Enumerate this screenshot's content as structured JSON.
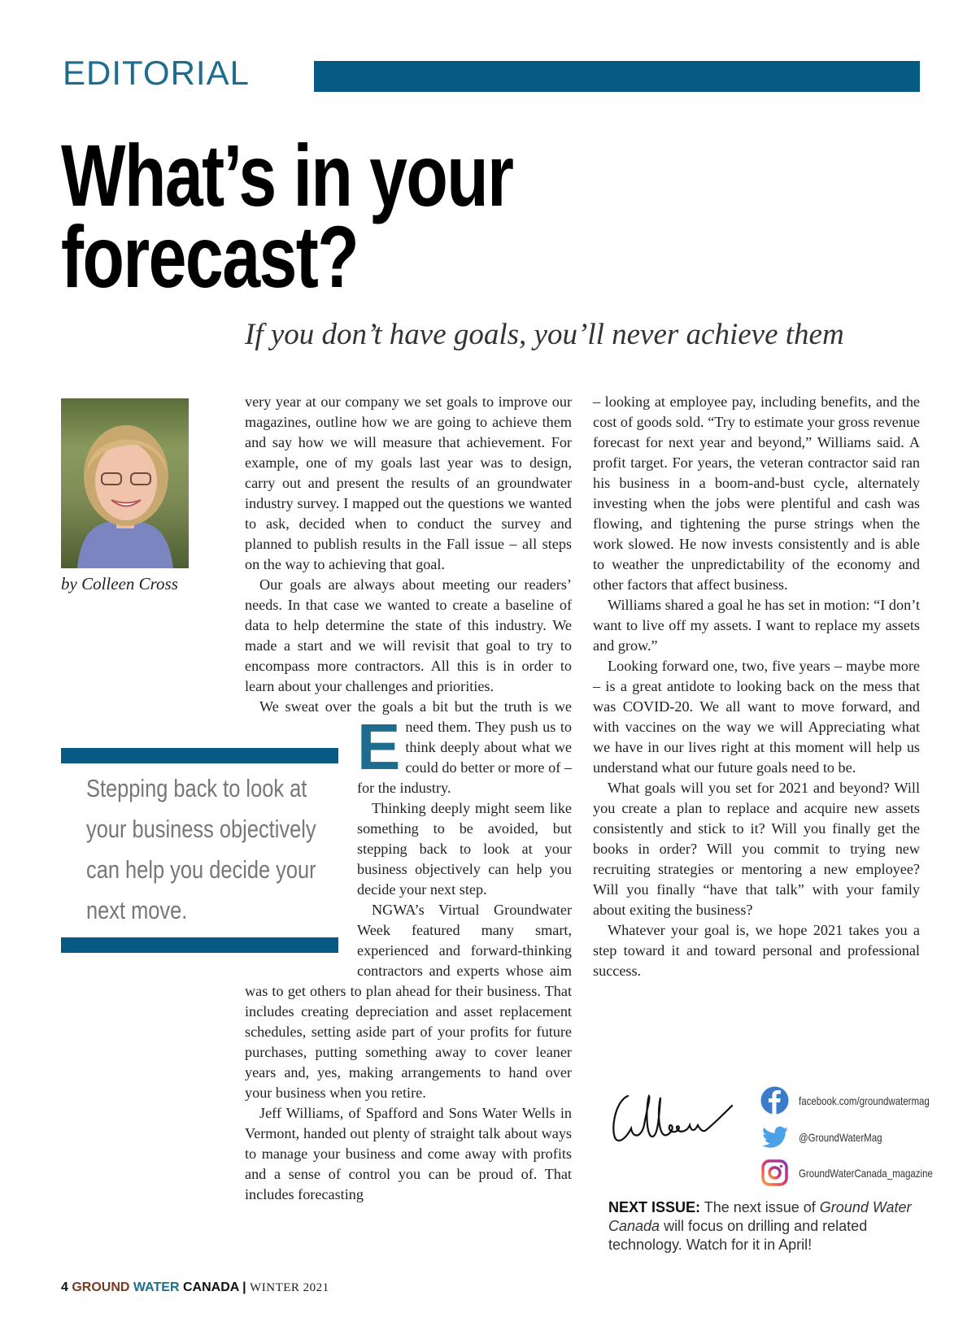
{
  "section": "EDITORIAL",
  "title_line1": "What’s in your",
  "title_line2": "forecast?",
  "subtitle": "If you don’t have goals, you’ll never achieve them",
  "byline": "by Colleen Cross",
  "drop_cap": "E",
  "col2": [
    "very year at our company we set goals to improve our magazines, outline how we are going to achieve them and say how we will measure that achievement. For example, one of my goals last year was to design, carry out and present the results of an groundwater industry survey. I mapped out the questions we wanted to ask, decided when to conduct the survey and planned to publish results in the Fall issue – all steps on the way to achieving that goal.",
    "Our goals are always about meeting our readers’ needs. In that case we wanted to create a baseline of data to help determine the state of this industry. We made a start and we will revisit that goal to try to encompass more contractors. All this is in order to learn about your challenges and priorities.",
    "We sweat over the goals a bit but the truth is we need them. They push us to think deeply about what we could do better or more of – for the industry.",
    "Thinking deeply might seem like something to be avoided, but stepping back to look at your business objectively can help you decide your next step.",
    "NGWA’s Virtual Groundwater Week featured many smart, experienced and forward-thinking contractors and experts whose aim was to get others to plan ahead for their business. That includes creating depreciation and asset replacement schedules, setting aside part of your profits for future purchases, putting something away to cover leaner years and, yes, making arrangements to hand over your business when you retire.",
    "Jeff Williams, of Spafford and Sons Water Wells in Vermont, handed out plenty of straight talk about ways to manage your business and come away with profits and a sense of control you can be proud of. That includes forecasting"
  ],
  "col3": [
    "– looking at employee pay, including benefits, and the cost of goods sold. “Try to estimate your gross revenue forecast for next year and beyond,” Williams said. A profit target. For years, the veteran contractor said ran his business in a boom-and-bust cycle, alternately investing when the jobs were plentiful and cash was flowing, and tightening the purse strings when the work slowed. He now invests consistently and is able to weather the unpredictability of the economy and other factors that affect business.",
    "Williams shared a goal he has set in motion: “I don’t want to live off my assets. I want to replace my assets and grow.”",
    "Looking forward one, two, five years – maybe more – is a great antidote to looking back on the mess that was COVID-20. We all want to move forward, and with vaccines on the way we will Appreciating what we have in our lives right at this moment will help us understand what our future goals need to be.",
    "What goals will you set for 2021 and beyond? Will you create a plan to replace and acquire new assets consistently and stick to it? Will you finally get the books in order? Will you commit to trying new recruiting strategies or mentoring a new employee? Will you finally “have that talk” with your family about exiting the business?",
    "Whatever your goal is, we hope 2021 takes you a step toward it and toward personal and professional success."
  ],
  "pull_quote": "Stepping back to look at your business objectively can help you decide your next move.",
  "signature": "Colleen",
  "social": {
    "facebook": {
      "icon": "facebook-icon",
      "label": "facebook.com/groundwatermag"
    },
    "twitter": {
      "icon": "twitter-icon",
      "label": "@GroundWaterMag"
    },
    "instagram": {
      "icon": "instagram-icon",
      "label": "GroundWaterCanada_magazine"
    }
  },
  "next_issue": {
    "label": "NEXT ISSUE:",
    "text_before": " The next issue of ",
    "publication": "Ground Water Canada",
    "text_after": " will focus on drilling and related technology. Watch for it in April!"
  },
  "footer": {
    "page": "4",
    "brand_ground": "GROUND",
    "brand_water": "WATER",
    "brand_canada": "CANADA",
    "separator": "|",
    "issue": "WINTER 2021"
  },
  "colors": {
    "accent": "#065a83",
    "section_text": "#1f6d8e",
    "brand_brown": "#7a3b22"
  }
}
